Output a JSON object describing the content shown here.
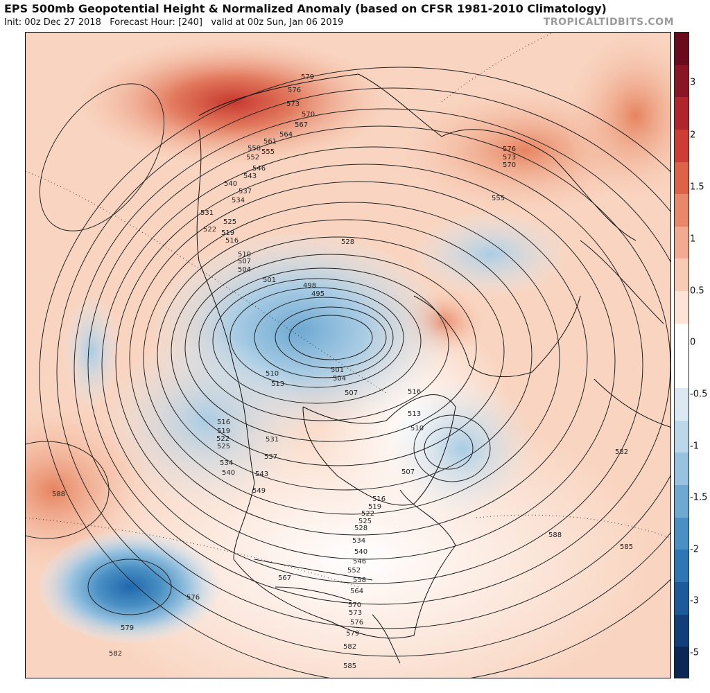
{
  "header": {
    "title": "EPS 500mb Geopotential Height & Normalized Anomaly (based on CFSR 1981-2010 Climatology)",
    "init": "Init: 00z Dec 27 2018",
    "forecast_hour": "Forecast Hour: [240]",
    "valid": "valid at 00z Sun, Jan 06 2019",
    "credit": "TROPICALTIDBITS.COM"
  },
  "colorbar": {
    "ticks": [
      "3",
      "2",
      "1.5",
      "1",
      "0.5",
      "0",
      "-0.5",
      "-1",
      "-1.5",
      "-2",
      "-3",
      "-5"
    ],
    "colors": [
      "#6b0a1c",
      "#8a1525",
      "#b0242b",
      "#cd3c35",
      "#dd6248",
      "#e8876a",
      "#f2ab90",
      "#f8cbb5",
      "#fde4d6",
      "#ffffff",
      "#ffffff",
      "#dce9f3",
      "#bcd6ea",
      "#98c2df",
      "#6fa9d2",
      "#4a90c4",
      "#2f76b5",
      "#1c5a9c",
      "#123f7a",
      "#0a2756"
    ]
  },
  "contour_labels": [
    "579",
    "576",
    "573",
    "570",
    "567",
    "564",
    "561",
    "558",
    "555",
    "552",
    "546",
    "543",
    "540",
    "537",
    "534",
    "531",
    "528",
    "525",
    "522",
    "519",
    "516",
    "513",
    "510",
    "507",
    "504",
    "501",
    "498",
    "495",
    "588",
    "585",
    "582",
    "549"
  ],
  "map_labels": [
    {
      "text": "579"
    },
    {
      "text": "576"
    },
    {
      "text": "573"
    },
    {
      "text": "570"
    },
    {
      "text": "567"
    },
    {
      "text": "564"
    },
    {
      "text": "561"
    },
    {
      "text": "558"
    },
    {
      "text": "555"
    },
    {
      "text": "552"
    },
    {
      "text": "546"
    },
    {
      "text": "543"
    },
    {
      "text": "540"
    },
    {
      "text": "537"
    },
    {
      "text": "534"
    },
    {
      "text": "531"
    },
    {
      "text": "525"
    },
    {
      "text": "522"
    },
    {
      "text": "519"
    },
    {
      "text": "516"
    },
    {
      "text": "510"
    },
    {
      "text": "507"
    },
    {
      "text": "504"
    },
    {
      "text": "501"
    },
    {
      "text": "498"
    },
    {
      "text": "495"
    },
    {
      "text": "528"
    },
    {
      "text": "576"
    },
    {
      "text": "573"
    },
    {
      "text": "570"
    },
    {
      "text": "555"
    },
    {
      "text": "510"
    },
    {
      "text": "513"
    },
    {
      "text": "501"
    },
    {
      "text": "504"
    },
    {
      "text": "507"
    },
    {
      "text": "516"
    },
    {
      "text": "513"
    },
    {
      "text": "510"
    },
    {
      "text": "507"
    },
    {
      "text": "516"
    },
    {
      "text": "519"
    },
    {
      "text": "522"
    },
    {
      "text": "525"
    },
    {
      "text": "534"
    },
    {
      "text": "540"
    },
    {
      "text": "531"
    },
    {
      "text": "537"
    },
    {
      "text": "543"
    },
    {
      "text": "549"
    },
    {
      "text": "516"
    },
    {
      "text": "519"
    },
    {
      "text": "522"
    },
    {
      "text": "525"
    },
    {
      "text": "528"
    },
    {
      "text": "534"
    },
    {
      "text": "540"
    },
    {
      "text": "546"
    },
    {
      "text": "552"
    },
    {
      "text": "558"
    },
    {
      "text": "564"
    },
    {
      "text": "570"
    },
    {
      "text": "573"
    },
    {
      "text": "576"
    },
    {
      "text": "579"
    },
    {
      "text": "582"
    },
    {
      "text": "585"
    },
    {
      "text": "567"
    },
    {
      "text": "576"
    },
    {
      "text": "579"
    },
    {
      "text": "582"
    },
    {
      "text": "588"
    },
    {
      "text": "588"
    },
    {
      "text": "585"
    },
    {
      "text": "582"
    }
  ]
}
